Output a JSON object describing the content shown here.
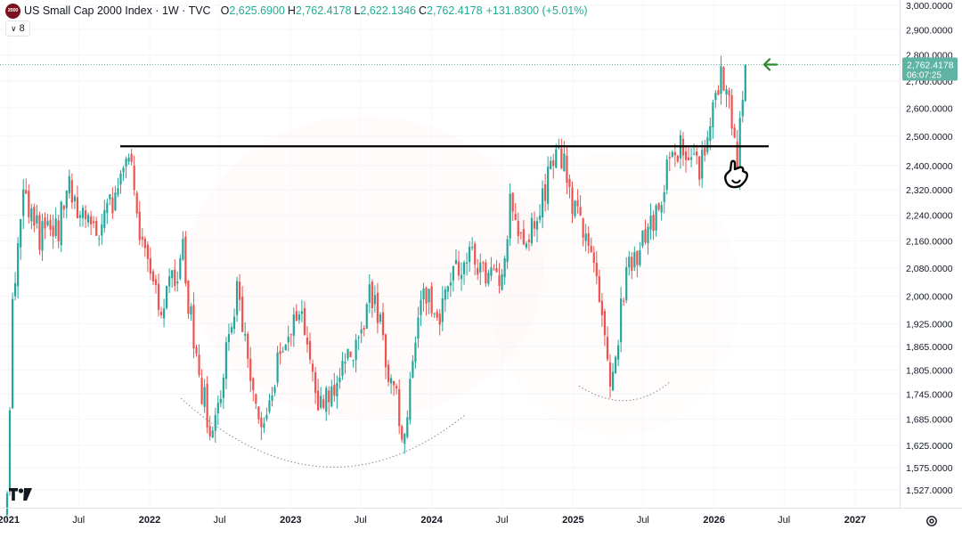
{
  "header": {
    "logo_text": "2000",
    "symbol_title": "US Small Cap 2000 Index · 1W · TVC",
    "ohlc": {
      "open_label": "O",
      "open": "2,625.6900",
      "high_label": "H",
      "high": "2,762.4178",
      "low_label": "L",
      "low": "2,622.1346",
      "close_label": "C",
      "close": "2,762.4178",
      "change": "+131.8300 (+5.01%)"
    },
    "indicators_count": "8"
  },
  "colors": {
    "up": "#26a69a",
    "down": "#ef5350",
    "price_tag": "#5fb3a3",
    "arrow": "#2e8b2e",
    "resistance": "#000000",
    "curve": "#888888"
  },
  "chart_data": {
    "type": "candlestick",
    "title": "US Small Cap 2000 Index · 1W · TVC",
    "x_tick_labels": [
      "2021",
      "Jul",
      "2022",
      "Jul",
      "2023",
      "Jul",
      "2024",
      "Jul",
      "2025",
      "Jul",
      "2026",
      "Jul",
      "2027"
    ],
    "y_tick_labels": [
      "3,000.0000",
      "2,900.0000",
      "2,800.0000",
      "2,700.0000",
      "2,600.0000",
      "2,500.0000",
      "2,400.0000",
      "2,320.0000",
      "2,240.0000",
      "2,160.0000",
      "2,080.0000",
      "2,000.0000",
      "1,925.0000",
      "1,865.0000",
      "1,805.0000",
      "1,745.0000",
      "1,685.0000",
      "1,625.0000",
      "1,575.0000",
      "1,527.0000"
    ],
    "price_scale": "log",
    "y_range": [
      1500,
      3000
    ],
    "x_range": [
      "2020-12-28",
      "2027-05-01"
    ],
    "last_price": "2,762.4178",
    "countdown": "06:07:25",
    "resistance_level": 2465,
    "anchors": [
      [
        "2020-12-28",
        1520
      ],
      [
        "2021-01-11",
        1950
      ],
      [
        "2021-02-08",
        2280
      ],
      [
        "2021-03-22",
        2180
      ],
      [
        "2021-05-10",
        2200
      ],
      [
        "2021-06-07",
        2330
      ],
      [
        "2021-08-16",
        2150
      ],
      [
        "2021-11-08",
        2445
      ],
      [
        "2021-12-06",
        2200
      ],
      [
        "2022-01-24",
        1960
      ],
      [
        "2022-03-28",
        2120
      ],
      [
        "2022-05-09",
        1770
      ],
      [
        "2022-06-13",
        1660
      ],
      [
        "2022-08-15",
        2010
      ],
      [
        "2022-10-10",
        1660
      ],
      [
        "2022-12-05",
        1850
      ],
      [
        "2023-01-30",
        1980
      ],
      [
        "2023-03-13",
        1730
      ],
      [
        "2023-05-01",
        1760
      ],
      [
        "2023-07-31",
        2010
      ],
      [
        "2023-10-23",
        1640
      ],
      [
        "2023-12-11",
        2040
      ],
      [
        "2024-01-22",
        1950
      ],
      [
        "2024-03-25",
        2120
      ],
      [
        "2024-06-24",
        2030
      ],
      [
        "2024-07-22",
        2260
      ],
      [
        "2024-09-02",
        2140
      ],
      [
        "2024-11-25",
        2460
      ],
      [
        "2025-01-13",
        2230
      ],
      [
        "2025-02-24",
        2100
      ],
      [
        "2025-04-07",
        1760
      ],
      [
        "2025-05-19",
        2070
      ],
      [
        "2025-07-28",
        2240
      ],
      [
        "2025-09-22",
        2460
      ],
      [
        "2025-11-03",
        2470
      ],
      [
        "2025-11-24",
        2390
      ],
      [
        "2026-01-19",
        2700
      ],
      [
        "2026-02-09",
        2660
      ],
      [
        "2026-03-02",
        2420
      ],
      [
        "2026-03-16",
        2625
      ],
      [
        "2026-03-23",
        2762
      ]
    ]
  }
}
